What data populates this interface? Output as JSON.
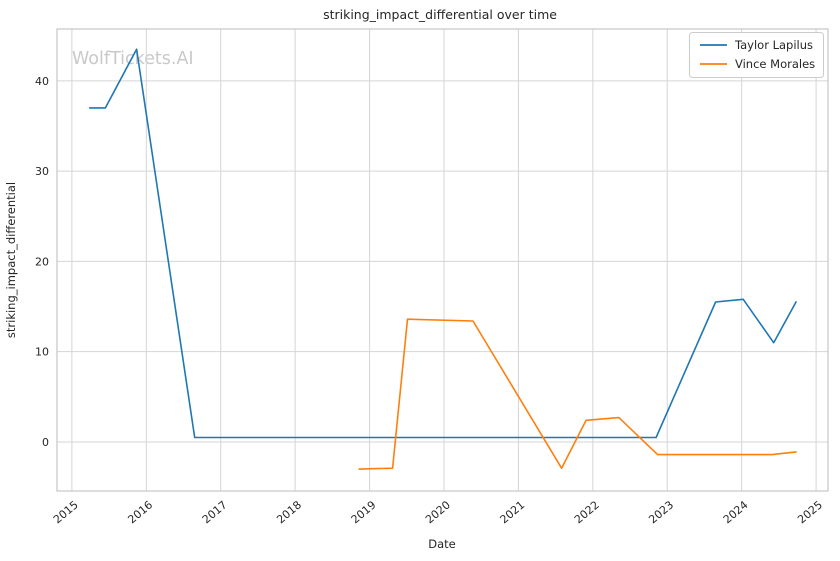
{
  "watermark": "WolfTickets.AI",
  "chart_data": {
    "type": "line",
    "title": "striking_impact_differential over time",
    "xlabel": "Date",
    "ylabel": "striking_impact_differential",
    "grid": true,
    "legend_position": "upper right",
    "x_ticks": [
      2015,
      2016,
      2017,
      2018,
      2019,
      2020,
      2021,
      2022,
      2023,
      2024,
      2025
    ],
    "y_ticks": [
      0,
      10,
      20,
      30,
      40
    ],
    "x_range": [
      2014.8,
      2025.16
    ],
    "y_range": [
      -5.43,
      45.74
    ],
    "colors": {
      "grid": "#d5d5d5",
      "border": "#c6c6c6",
      "text": "#262626",
      "watermark": "#c9c9c9"
    },
    "series": [
      {
        "name": "Taylor Lapilus",
        "color": "#1f77b4",
        "points": [
          [
            2015.24,
            37.0
          ],
          [
            2015.45,
            37.0
          ],
          [
            2015.87,
            43.5
          ],
          [
            2016.65,
            0.5
          ],
          [
            2022.85,
            0.5
          ],
          [
            2023.65,
            15.5
          ],
          [
            2024.02,
            15.8
          ],
          [
            2024.43,
            11.0
          ],
          [
            2024.73,
            15.5
          ]
        ]
      },
      {
        "name": "Vince Morales",
        "color": "#ff7f0e",
        "points": [
          [
            2018.86,
            -3.0
          ],
          [
            2019.31,
            -2.9
          ],
          [
            2019.51,
            13.6
          ],
          [
            2020.39,
            13.4
          ],
          [
            2021.58,
            -2.9
          ],
          [
            2021.91,
            2.4
          ],
          [
            2022.35,
            2.7
          ],
          [
            2022.87,
            -1.4
          ],
          [
            2024.41,
            -1.4
          ],
          [
            2024.73,
            -1.1
          ]
        ]
      }
    ]
  }
}
